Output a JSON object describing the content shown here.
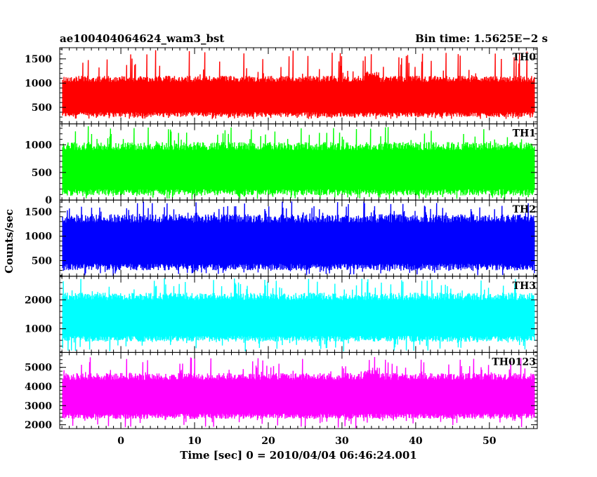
{
  "header": {
    "left_title": "ae100404064624_wam3_bst",
    "right_title": "Bin time: 1.5625E−2 s"
  },
  "chart_data": {
    "type": "line",
    "title": "ae100404064624_wam3_bst",
    "bin_time": "Bin time: 1.5625E−2 s",
    "xlabel": "Time [sec] 0 = 2010/04/04 06:46:24.001",
    "ylabel": "Counts/sec",
    "xlim": [
      -8.3,
      56.5
    ],
    "xticks": [
      0,
      10,
      20,
      30,
      40,
      50
    ],
    "data_x_range": [
      -7.9,
      56.1
    ],
    "grid": false,
    "legend": "none",
    "panels": [
      {
        "name": "TH0",
        "color": "#ff0000",
        "ylim": [
          160,
          1730
        ],
        "yticks": [
          500,
          1000,
          1500
        ],
        "mean": 600,
        "typical_low": 300,
        "typical_high": 1150,
        "min": 260,
        "max": 1700,
        "peak_region": [
          33,
          35
        ]
      },
      {
        "name": "TH1",
        "color": "#00ff00",
        "ylim": [
          0,
          1380
        ],
        "yticks": [
          0,
          500,
          1000
        ],
        "mean": 460,
        "typical_low": 80,
        "typical_high": 1050,
        "min": 10,
        "max": 1340,
        "peak_region": []
      },
      {
        "name": "TH2",
        "color": "#0000ff",
        "ylim": [
          180,
          1740
        ],
        "yticks": [
          500,
          1000,
          1500
        ],
        "mean": 860,
        "typical_low": 300,
        "typical_high": 1450,
        "min": 190,
        "max": 1720,
        "peak_region": []
      },
      {
        "name": "TH3",
        "color": "#00ffff",
        "ylim": [
          180,
          2820
        ],
        "yticks": [
          1000,
          2000
        ],
        "mean": 1310,
        "typical_low": 550,
        "typical_high": 2250,
        "min": 200,
        "max": 2780,
        "peak_region": []
      },
      {
        "name": "TH0123",
        "color": "#ff00ff",
        "ylim": [
          1800,
          5780
        ],
        "yticks": [
          2000,
          3000,
          4000,
          5000
        ],
        "mean": 3230,
        "typical_low": 2300,
        "typical_high": 4700,
        "min": 1820,
        "max": 5600,
        "peak_region": [
          33,
          35
        ]
      }
    ]
  }
}
